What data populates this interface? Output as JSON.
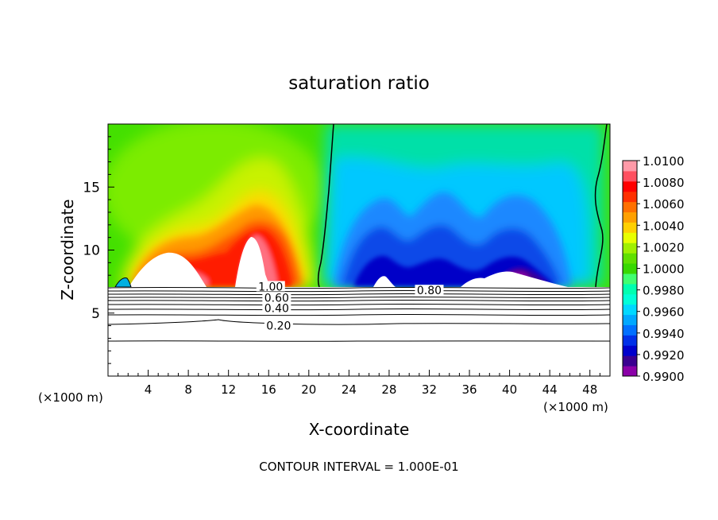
{
  "chart_data": {
    "type": "heatmap",
    "title": "saturation ratio",
    "xlabel": "X-coordinate",
    "ylabel": "Z-coordinate",
    "x_unit": "(×1000 m)",
    "x_unit_right": "(×1000 m)",
    "xlim": [
      0,
      50
    ],
    "ylim": [
      0,
      20
    ],
    "x_ticks": [
      "4",
      "8",
      "12",
      "16",
      "20",
      "24",
      "28",
      "32",
      "36",
      "40",
      "44",
      "48"
    ],
    "y_ticks": [
      "5",
      "10",
      "15"
    ],
    "grid": false,
    "colorbar": {
      "labels": [
        "1.0100",
        "1.0080",
        "1.0060",
        "1.0040",
        "1.0020",
        "1.0000",
        "0.9980",
        "0.9960",
        "0.9940",
        "0.9920",
        "0.9900"
      ],
      "range": [
        0.99,
        1.01
      ],
      "colors": [
        "#8b00a8",
        "#3a0090",
        "#0000cc",
        "#0030e8",
        "#0070ff",
        "#00a8ff",
        "#00d8ff",
        "#00ffd8",
        "#00ffb0",
        "#40ff70",
        "#38d800",
        "#60e000",
        "#a0f000",
        "#e8ff00",
        "#ffd000",
        "#ffa000",
        "#ff7000",
        "#ff3000",
        "#ff0000",
        "#ff5060",
        "#ff9aa8"
      ]
    },
    "contour_labels": [
      {
        "text": "1.00",
        "x": 16.2,
        "y": 7.1
      },
      {
        "text": "0.60",
        "x": 16.8,
        "y": 6.2
      },
      {
        "text": "0.40",
        "x": 16.8,
        "y": 5.4
      },
      {
        "text": "0.20",
        "x": 17.0,
        "y": 4.0
      },
      {
        "text": "0.80",
        "x": 32.0,
        "y": 6.8
      }
    ],
    "footer": "CONTOUR INTERVAL = 1.000E-01"
  }
}
